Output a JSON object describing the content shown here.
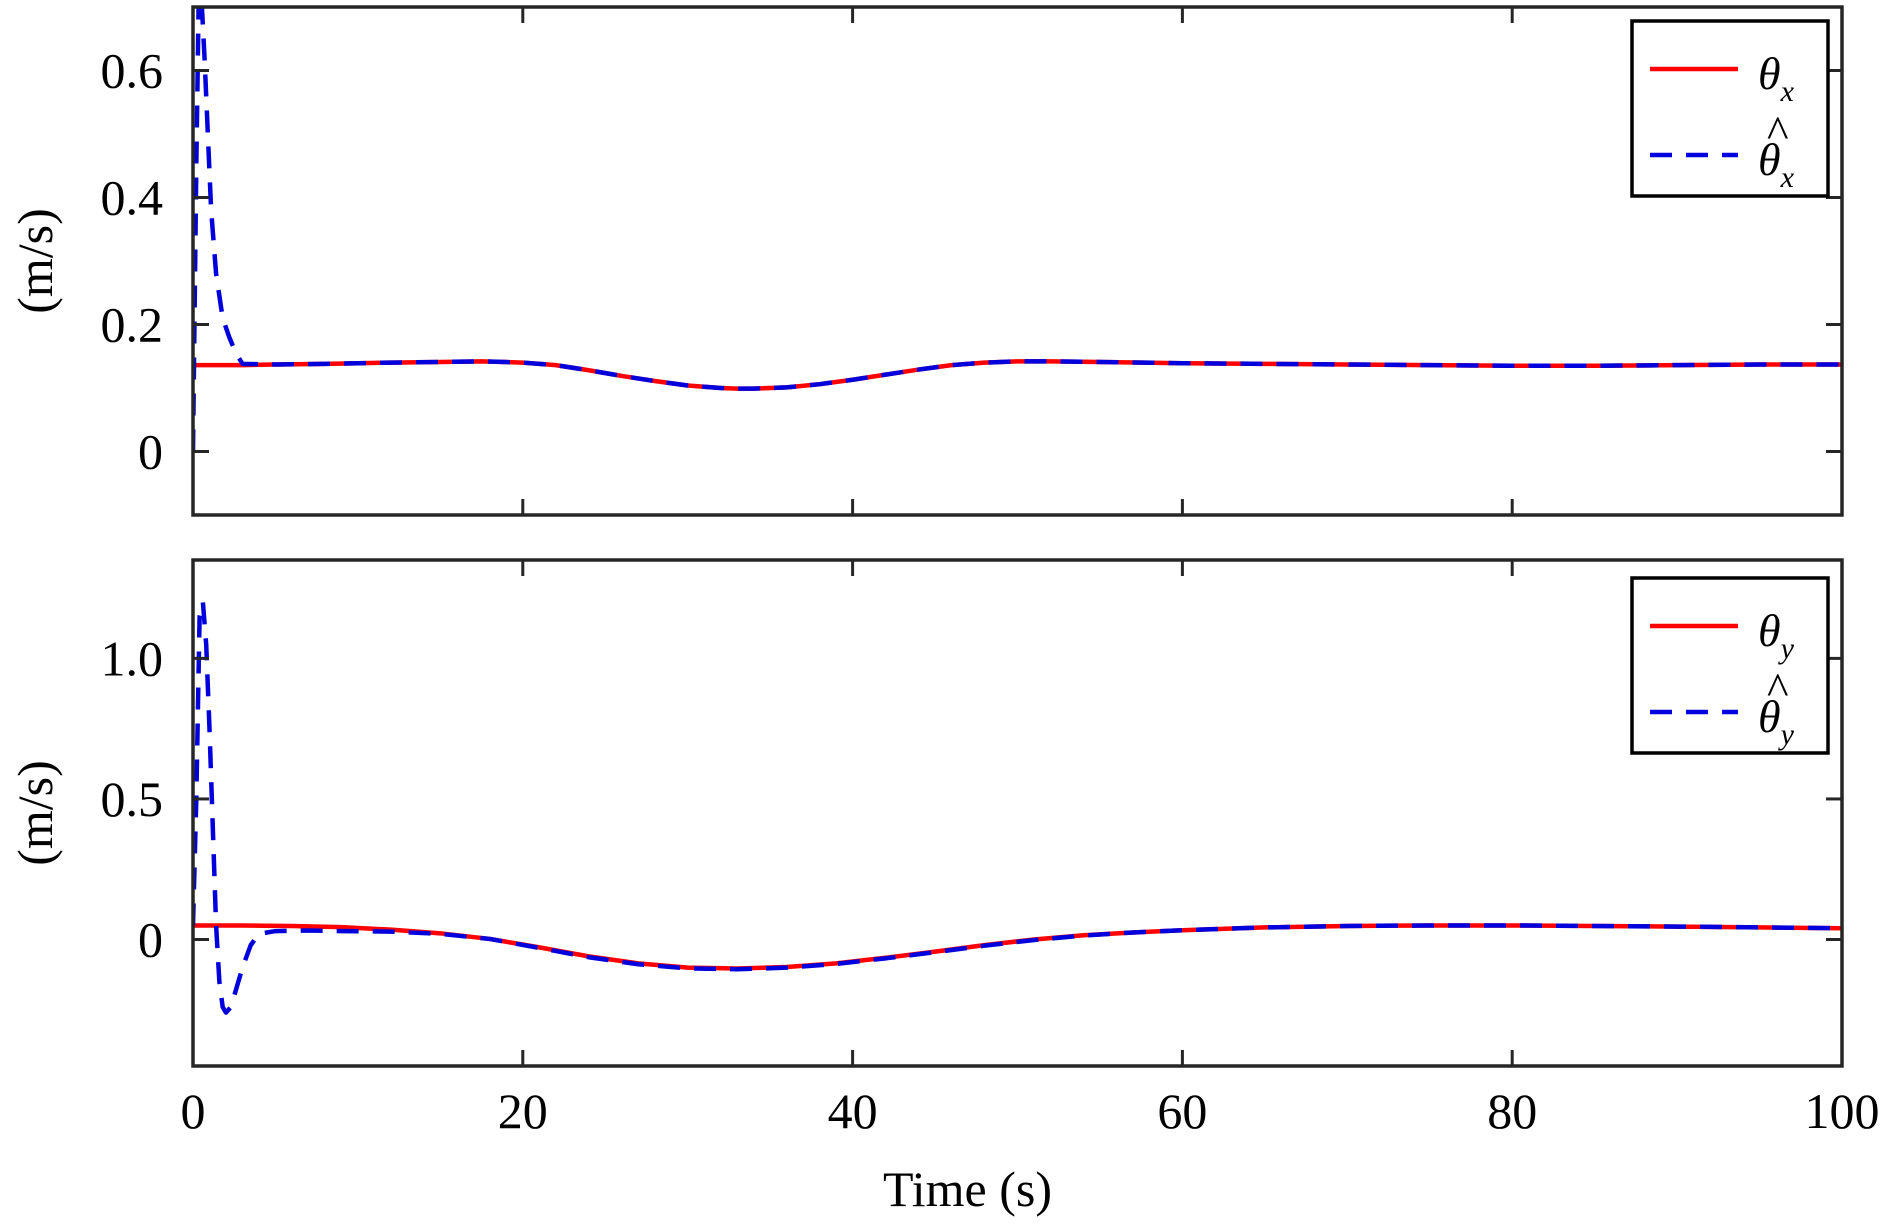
{
  "chart_data": [
    {
      "type": "line",
      "title": "",
      "xlabel": "",
      "ylabel": "(m/s)",
      "xlim": [
        0,
        100
      ],
      "ylim": [
        -0.1,
        0.7
      ],
      "xticks": [
        0,
        20,
        40,
        60,
        80,
        100
      ],
      "yticks": [
        0,
        0.2,
        0.4,
        0.6
      ],
      "ytick_labels": [
        "0",
        "0.2",
        "0.4",
        "0.6"
      ],
      "xtick_labels": [],
      "grid": false,
      "legend_position": "top-right",
      "series": [
        {
          "name": "θx",
          "legend_symbol": "θ",
          "legend_subscript": "x",
          "legend_hat": false,
          "color": "#ff0000",
          "dash": "solid",
          "x": [
            0,
            3,
            5,
            8,
            10,
            12,
            15,
            17.5,
            20,
            22,
            24,
            26,
            28,
            30,
            32,
            33,
            34,
            36,
            38,
            40,
            42,
            44,
            46,
            48,
            50,
            52,
            55,
            60,
            65,
            70,
            75,
            80,
            85,
            90,
            95,
            100
          ],
          "y": [
            0.136,
            0.136,
            0.137,
            0.138,
            0.139,
            0.14,
            0.141,
            0.142,
            0.14,
            0.136,
            0.128,
            0.119,
            0.111,
            0.104,
            0.1,
            0.099,
            0.099,
            0.101,
            0.106,
            0.113,
            0.121,
            0.129,
            0.136,
            0.14,
            0.142,
            0.142,
            0.141,
            0.139,
            0.138,
            0.137,
            0.136,
            0.135,
            0.135,
            0.136,
            0.137,
            0.137
          ]
        },
        {
          "name": "θ̂x",
          "legend_symbol": "θ",
          "legend_subscript": "x",
          "legend_hat": true,
          "color": "#0000dd",
          "dash": "dashed",
          "x": [
            0,
            0.2,
            0.35,
            0.5,
            0.7,
            0.9,
            1.1,
            1.4,
            1.8,
            2.2,
            2.6,
            3,
            5,
            8,
            10,
            12,
            15,
            17.5,
            20,
            22,
            24,
            26,
            28,
            30,
            32,
            33,
            34,
            36,
            38,
            40,
            42,
            44,
            46,
            48,
            50,
            52,
            55,
            60,
            65,
            70,
            75,
            80,
            85,
            90,
            95,
            100
          ],
          "y": [
            0,
            0.45,
            0.72,
            0.72,
            0.62,
            0.5,
            0.38,
            0.28,
            0.21,
            0.18,
            0.155,
            0.138,
            0.137,
            0.138,
            0.139,
            0.14,
            0.141,
            0.142,
            0.14,
            0.136,
            0.128,
            0.119,
            0.111,
            0.104,
            0.1,
            0.099,
            0.099,
            0.101,
            0.106,
            0.113,
            0.121,
            0.129,
            0.136,
            0.14,
            0.142,
            0.142,
            0.141,
            0.139,
            0.138,
            0.137,
            0.136,
            0.135,
            0.135,
            0.136,
            0.137,
            0.137
          ]
        }
      ]
    },
    {
      "type": "line",
      "title": "",
      "xlabel": "Time (s)",
      "ylabel": "(m/s)",
      "xlim": [
        0,
        100
      ],
      "ylim": [
        -0.45,
        1.35
      ],
      "xticks": [
        0,
        20,
        40,
        60,
        80,
        100
      ],
      "yticks": [
        0,
        0.5,
        1.0
      ],
      "ytick_labels": [
        "0",
        "0.5",
        "1.0"
      ],
      "xtick_labels": [
        "0",
        "20",
        "40",
        "60",
        "80",
        "100"
      ],
      "grid": false,
      "legend_position": "top-right",
      "series": [
        {
          "name": "θy",
          "legend_symbol": "θ",
          "legend_subscript": "y",
          "legend_hat": false,
          "color": "#ff0000",
          "dash": "solid",
          "x": [
            0,
            3,
            6,
            9,
            12,
            15,
            18,
            21,
            24,
            27,
            30,
            33,
            36,
            39,
            42,
            45,
            48,
            51,
            54,
            57,
            60,
            65,
            70,
            75,
            80,
            85,
            90,
            95,
            100
          ],
          "y": [
            0.05,
            0.05,
            0.048,
            0.044,
            0.035,
            0.022,
            0.002,
            -0.028,
            -0.06,
            -0.085,
            -0.1,
            -0.103,
            -0.098,
            -0.085,
            -0.065,
            -0.043,
            -0.02,
            0.0,
            0.015,
            0.025,
            0.033,
            0.043,
            0.048,
            0.05,
            0.05,
            0.048,
            0.046,
            0.043,
            0.04
          ]
        },
        {
          "name": "θ̂y",
          "legend_symbol": "θ",
          "legend_subscript": "y",
          "legend_hat": true,
          "color": "#0000dd",
          "dash": "dashed",
          "x": [
            0,
            0.2,
            0.4,
            0.6,
            0.8,
            1.0,
            1.2,
            1.4,
            1.6,
            1.8,
            2.0,
            2.3,
            2.6,
            3.0,
            3.5,
            4.0,
            5,
            7,
            9,
            12,
            15,
            18,
            21,
            24,
            27,
            30,
            33,
            36,
            39,
            42,
            45,
            48,
            51,
            54,
            57,
            60,
            65,
            70,
            75,
            80,
            85,
            90,
            95,
            100
          ],
          "y": [
            0.05,
            0.5,
            1.15,
            1.2,
            1.05,
            0.75,
            0.4,
            0.05,
            -0.15,
            -0.24,
            -0.26,
            -0.24,
            -0.18,
            -0.1,
            -0.02,
            0.02,
            0.03,
            0.032,
            0.03,
            0.028,
            0.02,
            0.002,
            -0.03,
            -0.063,
            -0.088,
            -0.103,
            -0.106,
            -0.1,
            -0.087,
            -0.067,
            -0.045,
            -0.022,
            -0.002,
            0.014,
            0.025,
            0.033,
            0.043,
            0.048,
            0.05,
            0.05,
            0.048,
            0.046,
            0.043,
            0.04
          ]
        }
      ]
    }
  ]
}
